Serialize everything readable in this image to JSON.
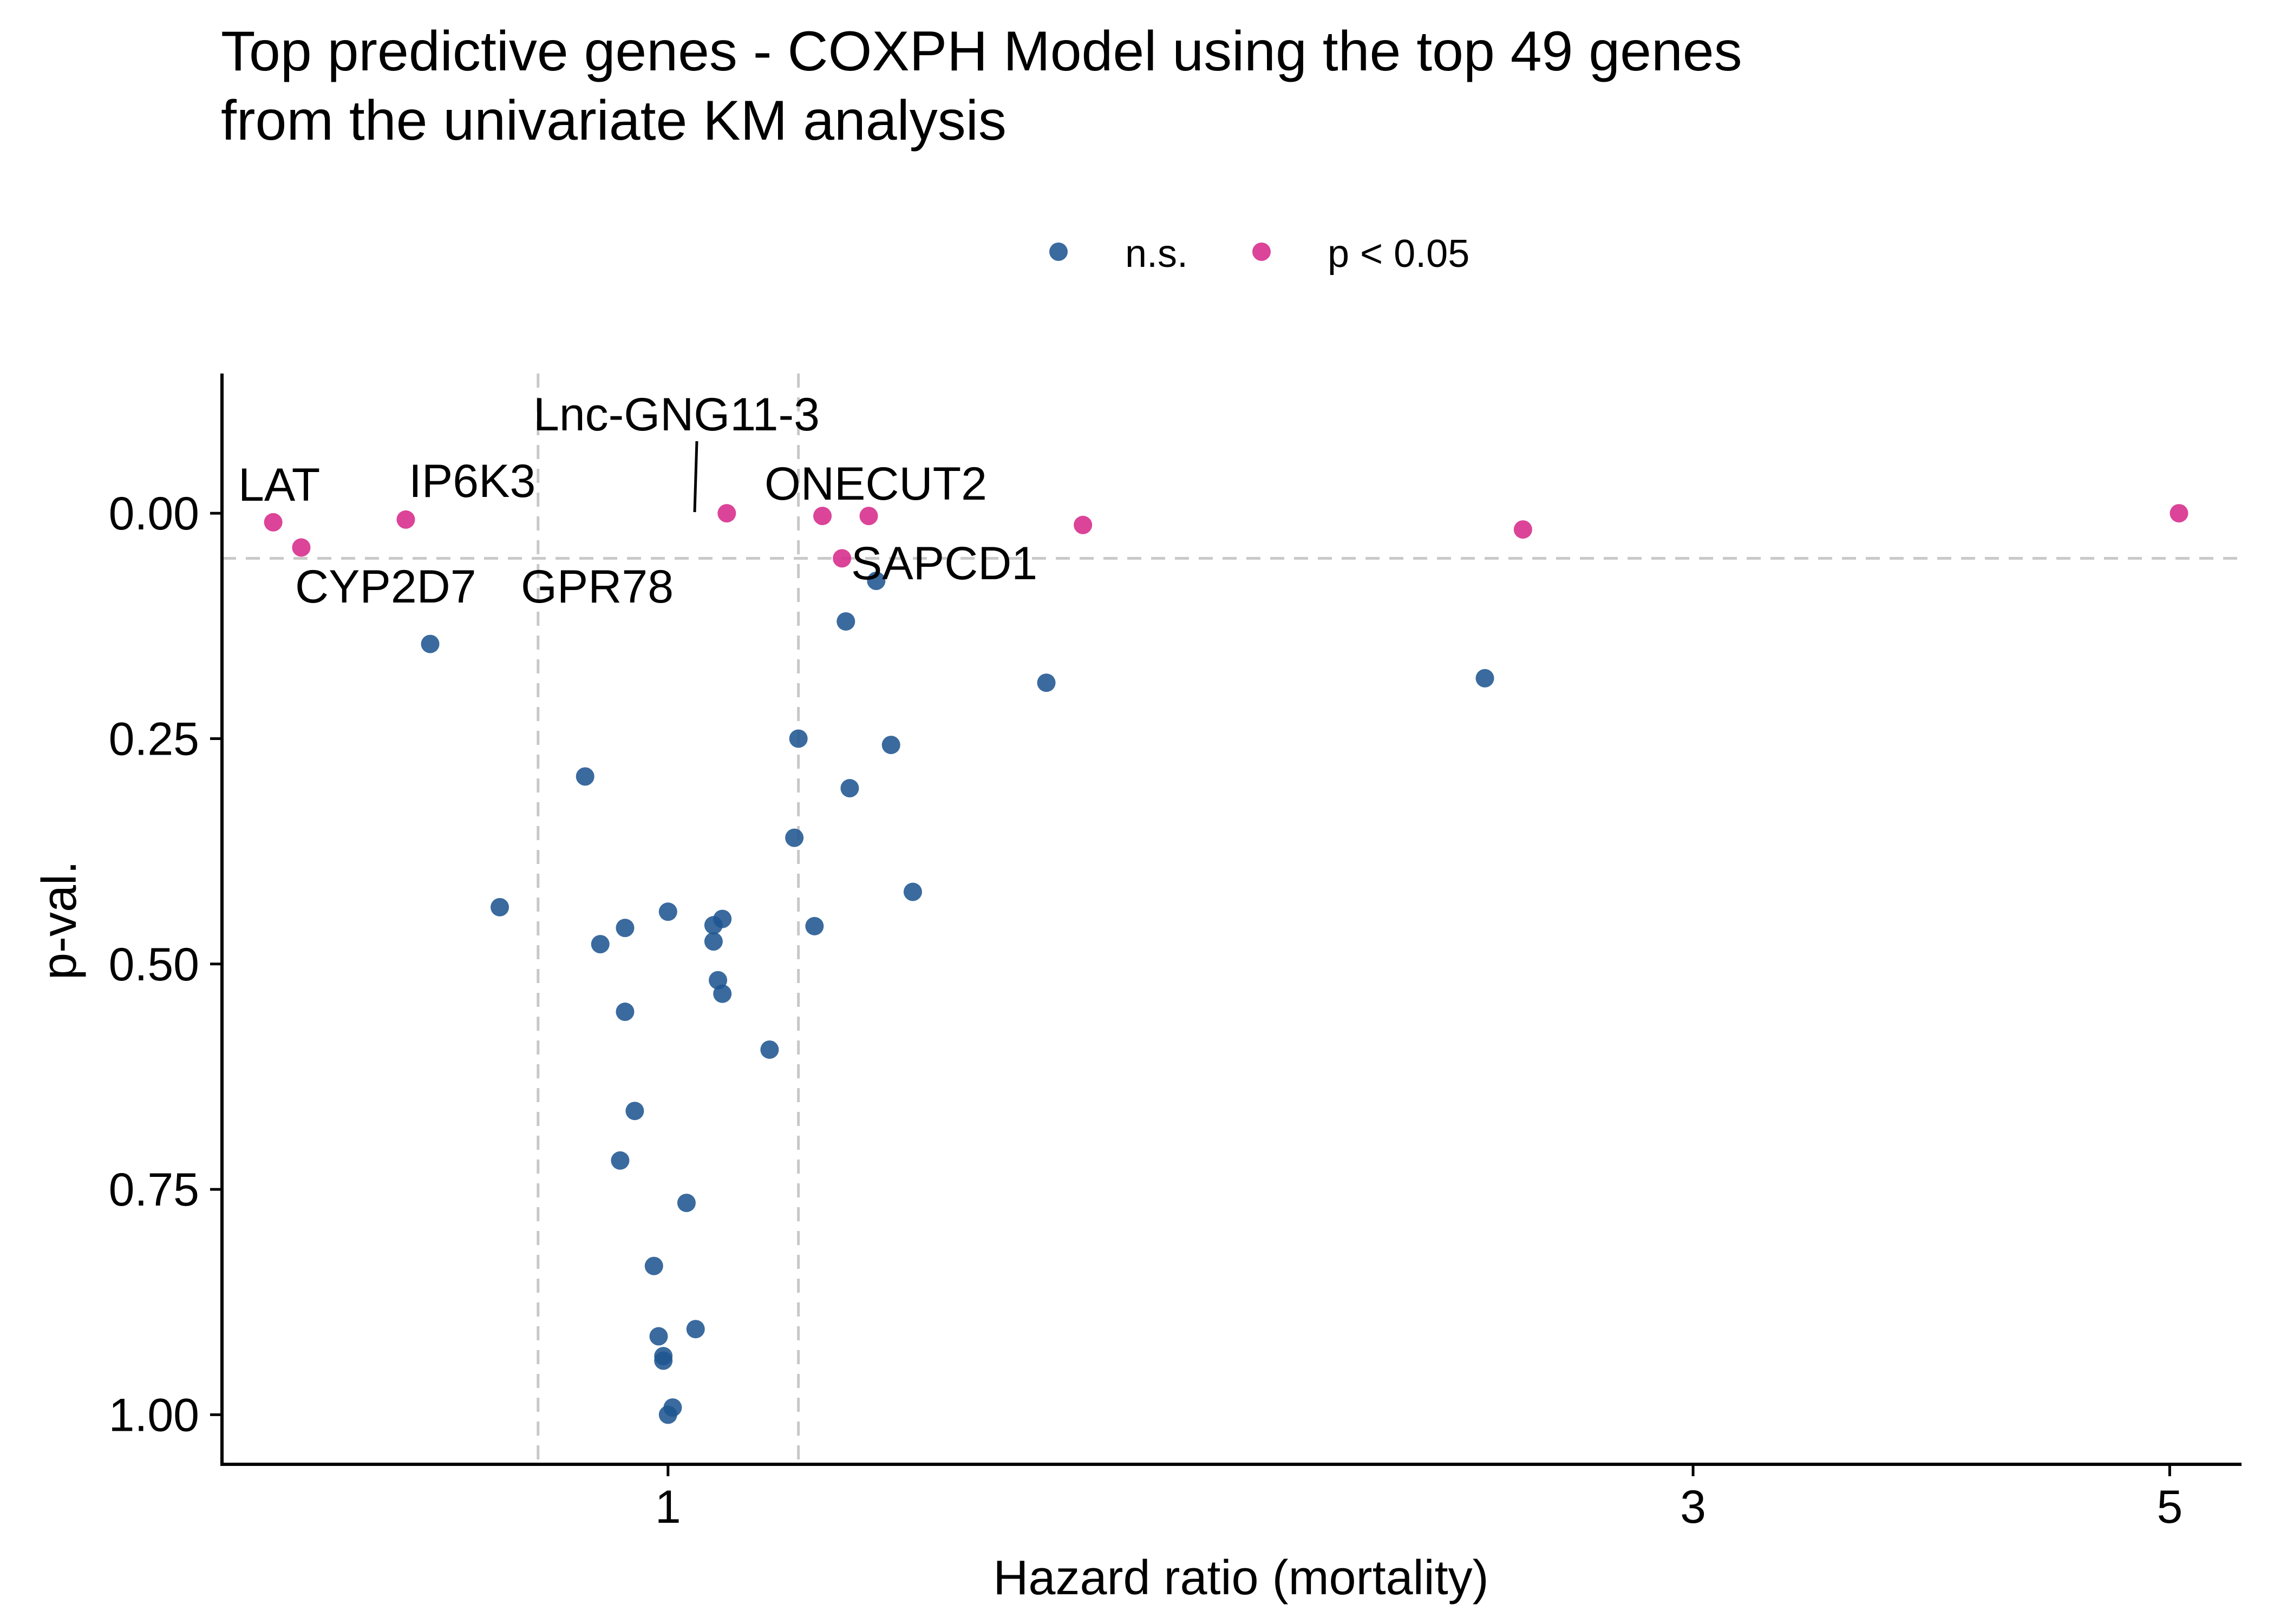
{
  "chart_data": {
    "type": "scatter",
    "title": "Top predictive genes - COXPH Model using the top 49 genes\nfrom the univariate KM analysis",
    "title_lines": [
      "Top predictive genes - COXPH Model using the top 49 genes",
      "from the univariate KM analysis"
    ],
    "xlabel": "Hazard ratio (mortality)",
    "ylabel": "p-val.",
    "x_scale": "log",
    "xlim": [
      0.62,
      5.4
    ],
    "ylim": [
      1.055,
      -0.155
    ],
    "y_reversed": true,
    "x_ticks": [
      1,
      3,
      5
    ],
    "x_tick_labels": [
      "1",
      "3",
      "5"
    ],
    "y_ticks": [
      0,
      0.25,
      0.5,
      0.75,
      1
    ],
    "y_tick_labels": [
      "0.00",
      "0.25",
      "0.50",
      "0.75",
      "1.00"
    ],
    "grid": false,
    "legend": {
      "placement": "top",
      "entries": [
        "n.s.",
        "p < 0.05"
      ]
    },
    "reference_lines": {
      "vertical": [
        0.87,
        1.15
      ],
      "horizontal": [
        0.05
      ]
    },
    "colors": {
      "ns": "#1F5591",
      "sig": "#D62A8A",
      "reference_line": "#C8C8C8",
      "axis": "#000000"
    },
    "series": [
      {
        "name": "n.s.",
        "points": [
          {
            "x": 0.775,
            "y": 0.145
          },
          {
            "x": 1.25,
            "y": 0.075
          },
          {
            "x": 1.21,
            "y": 0.12
          },
          {
            "x": 1.5,
            "y": 0.188
          },
          {
            "x": 2.4,
            "y": 0.183
          },
          {
            "x": 1.15,
            "y": 0.25
          },
          {
            "x": 1.27,
            "y": 0.257
          },
          {
            "x": 0.915,
            "y": 0.292
          },
          {
            "x": 1.215,
            "y": 0.305
          },
          {
            "x": 1.145,
            "y": 0.36
          },
          {
            "x": 1.3,
            "y": 0.42
          },
          {
            "x": 0.835,
            "y": 0.437
          },
          {
            "x": 1.0,
            "y": 0.442
          },
          {
            "x": 1.06,
            "y": 0.45
          },
          {
            "x": 1.05,
            "y": 0.457
          },
          {
            "x": 0.955,
            "y": 0.46
          },
          {
            "x": 1.17,
            "y": 0.458
          },
          {
            "x": 0.93,
            "y": 0.478
          },
          {
            "x": 1.05,
            "y": 0.475
          },
          {
            "x": 1.055,
            "y": 0.518
          },
          {
            "x": 1.06,
            "y": 0.533
          },
          {
            "x": 0.955,
            "y": 0.553
          },
          {
            "x": 1.115,
            "y": 0.595
          },
          {
            "x": 0.965,
            "y": 0.663
          },
          {
            "x": 0.95,
            "y": 0.718
          },
          {
            "x": 1.02,
            "y": 0.765
          },
          {
            "x": 0.985,
            "y": 0.835
          },
          {
            "x": 1.03,
            "y": 0.905
          },
          {
            "x": 0.99,
            "y": 0.913
          },
          {
            "x": 0.995,
            "y": 0.935
          },
          {
            "x": 0.995,
            "y": 0.94
          },
          {
            "x": 1.005,
            "y": 0.992
          },
          {
            "x": 1.0,
            "y": 1.0
          }
        ]
      },
      {
        "name": "p < 0.05",
        "points": [
          {
            "x": 0.655,
            "y": 0.01,
            "label": "LAT"
          },
          {
            "x": 0.675,
            "y": 0.038,
            "label": "CYP2D7"
          },
          {
            "x": 0.755,
            "y": 0.007,
            "label": "IP6K3"
          },
          {
            "x": 1.065,
            "y": 0.0
          },
          {
            "x": 1.18,
            "y": 0.003,
            "label": "Lnc-GNG11-3"
          },
          {
            "x": 1.205,
            "y": 0.05,
            "label": "GPR78"
          },
          {
            "x": 1.24,
            "y": 0.003,
            "label": "ONECUT2"
          },
          {
            "x": 1.56,
            "y": 0.013,
            "label": "SAPCD1"
          },
          {
            "x": 2.5,
            "y": 0.018
          },
          {
            "x": 5.05,
            "y": 0.0
          }
        ]
      }
    ],
    "annotations": [
      "LAT",
      "IP6K3",
      "Lnc-GNG11-3",
      "ONECUT2",
      "CYP2D7",
      "GPR78",
      "SAPCD1"
    ]
  }
}
